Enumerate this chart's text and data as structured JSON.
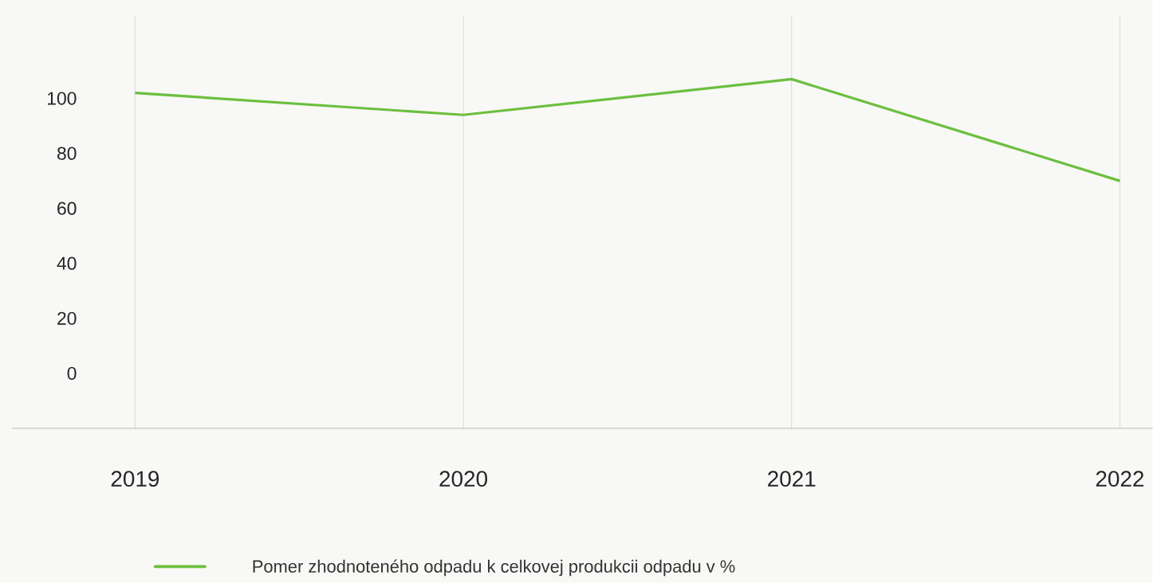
{
  "chart_data": {
    "type": "line",
    "categories": [
      "2019",
      "2020",
      "2021",
      "2022"
    ],
    "series": [
      {
        "name": "Pomer zhodnoteného odpadu k celkovej produkcii odpadu v %",
        "color": "#6cbf3f",
        "values": [
          102,
          94,
          107,
          70
        ]
      }
    ],
    "ylim": [
      -20,
      130
    ],
    "yticks": [
      0,
      20,
      40,
      60,
      80,
      100
    ],
    "grid": "x",
    "legend": "bottom",
    "marker": "none",
    "line_style": "solid",
    "tick_labels": "xy"
  }
}
